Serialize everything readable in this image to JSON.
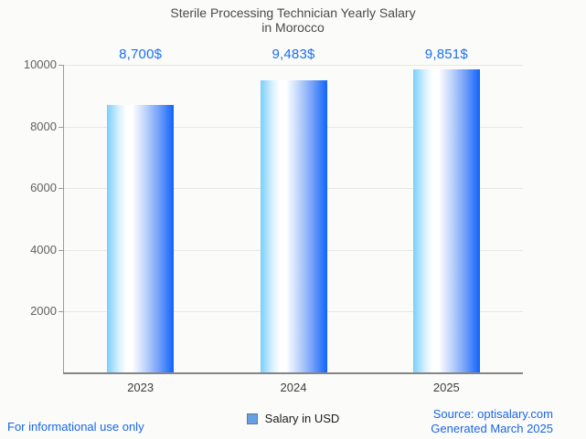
{
  "title": {
    "line1": "Sterile Processing Technician Yearly Salary",
    "line2": "in Morocco"
  },
  "legend": {
    "label": "Salary in USD",
    "swatch_color": "#63a0e8",
    "swatch_border": "#757575"
  },
  "footer": {
    "disclaimer": "For informational use only",
    "source": "Source: optisalary.com",
    "generated": "Generated March 2025"
  },
  "colors": {
    "background": "#fbfbf9",
    "title_text": "#4a4a4a",
    "value_label_blue": "#1b6ff2",
    "link_blue": "#1a66e8",
    "grid": "#e7e7e4",
    "axis": "#9b9b9b",
    "bar_gradient_left": "#79d0fa",
    "bar_gradient_mid": "#ffffff",
    "bar_gradient_right": "#1064fb"
  },
  "chart_data": {
    "type": "bar",
    "title": "Sterile Processing Technician Yearly Salary in Morocco",
    "categories": [
      "2023",
      "2024",
      "2025"
    ],
    "values": [
      8700,
      9483,
      9851
    ],
    "value_labels": [
      "8,700$",
      "9,483$",
      "9,851$"
    ],
    "series_name": "Salary in USD",
    "xlabel": "",
    "ylabel": "",
    "ylim": [
      0,
      10000
    ],
    "yticks": [
      2000,
      4000,
      6000,
      8000,
      10000
    ],
    "grid": "horizontal",
    "legend_position": "bottom"
  }
}
